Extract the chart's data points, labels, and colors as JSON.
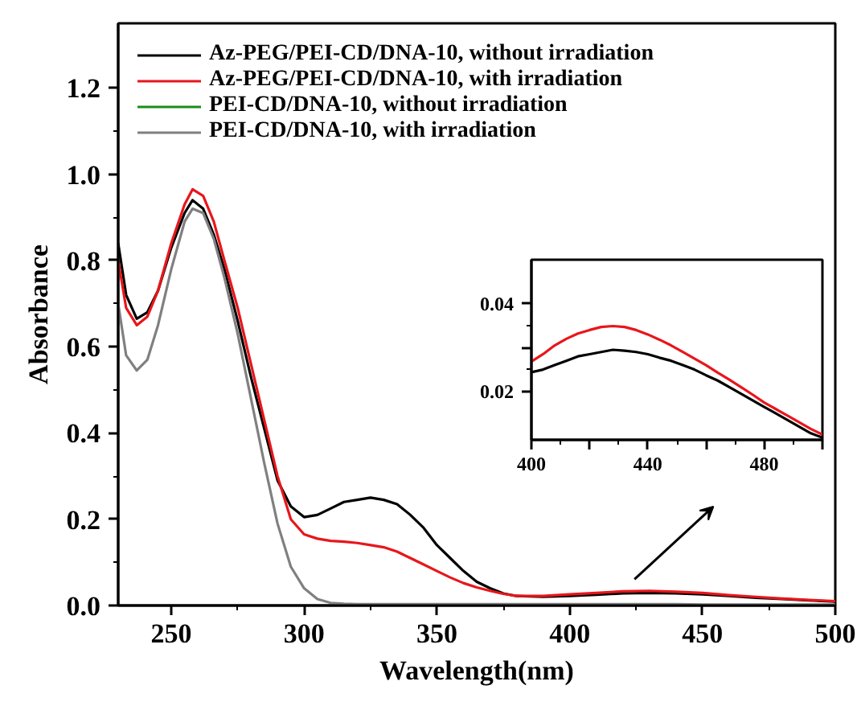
{
  "chart_data": [
    {
      "type": "line",
      "xlabel": "Wavelength(nm)",
      "ylabel": "Absorbance",
      "xlim": [
        230,
        500
      ],
      "ylim": [
        0,
        1.35
      ],
      "xticks": [
        250,
        300,
        350,
        400,
        450,
        500
      ],
      "yticks": [
        {
          "value": 0,
          "label": "0.0"
        },
        0.2,
        0.4,
        0.6,
        0.8,
        {
          "value": 1,
          "label": "1.0"
        },
        1.2
      ],
      "grid": false,
      "legend": "top left",
      "x": [
        230,
        233,
        237,
        241,
        245,
        250,
        255,
        258,
        262,
        266,
        270,
        275,
        280,
        285,
        290,
        295,
        300,
        305,
        310,
        315,
        320,
        325,
        330,
        335,
        340,
        345,
        350,
        355,
        360,
        365,
        370,
        375,
        380,
        390,
        400,
        410,
        420,
        430,
        440,
        450,
        460,
        470,
        480,
        490,
        500
      ],
      "series": [
        {
          "name": "Az-PEG/PEI-CD/DNA-10, without irradiation",
          "color": "#000000",
          "values": [
            0.84,
            0.72,
            0.665,
            0.68,
            0.73,
            0.83,
            0.91,
            0.94,
            0.92,
            0.86,
            0.78,
            0.66,
            0.53,
            0.41,
            0.29,
            0.23,
            0.205,
            0.21,
            0.225,
            0.24,
            0.245,
            0.25,
            0.245,
            0.235,
            0.21,
            0.18,
            0.14,
            0.11,
            0.08,
            0.055,
            0.04,
            0.028,
            0.022,
            0.02,
            0.022,
            0.025,
            0.028,
            0.029,
            0.028,
            0.026,
            0.022,
            0.018,
            0.015,
            0.012,
            0.009
          ]
        },
        {
          "name": "Az-PEG/PEI-CD/DNA-10, with irradiation",
          "color": "#e8161b",
          "values": [
            0.8,
            0.69,
            0.65,
            0.67,
            0.73,
            0.84,
            0.93,
            0.965,
            0.95,
            0.89,
            0.8,
            0.69,
            0.56,
            0.43,
            0.3,
            0.2,
            0.165,
            0.155,
            0.15,
            0.148,
            0.145,
            0.14,
            0.135,
            0.125,
            0.11,
            0.095,
            0.08,
            0.065,
            0.052,
            0.042,
            0.034,
            0.027,
            0.022,
            0.022,
            0.026,
            0.029,
            0.033,
            0.034,
            0.032,
            0.029,
            0.024,
            0.02,
            0.016,
            0.013,
            0.01
          ]
        },
        {
          "name": "PEI-CD/DNA-10, without irradiation",
          "color": "#1a8c1a",
          "values": [
            null,
            null,
            null,
            null,
            null,
            null,
            null,
            null,
            null,
            null,
            null,
            null,
            null,
            null,
            null,
            null,
            null,
            null,
            null,
            null,
            null,
            null,
            null,
            null,
            null,
            null,
            null,
            null,
            null,
            null,
            null,
            null,
            null,
            null,
            null,
            null,
            null,
            null,
            null,
            null,
            null,
            null,
            null,
            null,
            null
          ]
        },
        {
          "name": "PEI-CD/DNA-10, with irradiation",
          "color": "#808080",
          "values": [
            0.7,
            0.58,
            0.545,
            0.57,
            0.65,
            0.78,
            0.89,
            0.92,
            0.91,
            0.85,
            0.76,
            0.63,
            0.48,
            0.33,
            0.19,
            0.09,
            0.04,
            0.015,
            0.006,
            0.004,
            0.003,
            0.003,
            0.003,
            0.003,
            0.003,
            0.003,
            0.003,
            0.003,
            0.003,
            0.003,
            0.003,
            0.003,
            0.003,
            0.003,
            0.003,
            0.003,
            0.003,
            0.003,
            0.003,
            0.002,
            0.002,
            0.002,
            0.002,
            0.002,
            0.002
          ]
        }
      ]
    },
    {
      "type": "line",
      "xlim": [
        400,
        500
      ],
      "ylim": [
        0.009,
        0.05
      ],
      "xticks": [
        400,
        {
          "value": 420,
          "label": null
        },
        440,
        {
          "value": 460,
          "label": null
        },
        480,
        {
          "value": 500,
          "label": null
        }
      ],
      "yticks": [
        0.02,
        {
          "value": 0.03,
          "label": null
        },
        0.04
      ],
      "grid": false,
      "x": [
        400,
        404,
        408,
        412,
        416,
        420,
        424,
        428,
        432,
        436,
        440,
        444,
        448,
        452,
        456,
        460,
        464,
        468,
        472,
        476,
        480,
        484,
        488,
        492,
        496,
        500
      ],
      "series": [
        {
          "color": "#000000",
          "values": [
            0.0244,
            0.025,
            0.026,
            0.027,
            0.028,
            0.0285,
            0.029,
            0.0295,
            0.0293,
            0.029,
            0.0285,
            0.0277,
            0.027,
            0.026,
            0.025,
            0.0237,
            0.0225,
            0.021,
            0.0195,
            0.018,
            0.0165,
            0.015,
            0.0135,
            0.012,
            0.0105,
            0.0095
          ]
        },
        {
          "color": "#e8161b",
          "values": [
            0.0268,
            0.0285,
            0.0305,
            0.032,
            0.0332,
            0.034,
            0.0347,
            0.0349,
            0.0347,
            0.034,
            0.033,
            0.0318,
            0.0305,
            0.029,
            0.0275,
            0.026,
            0.0243,
            0.0227,
            0.021,
            0.0193,
            0.0175,
            0.016,
            0.0145,
            0.013,
            0.0115,
            0.0102
          ]
        }
      ]
    }
  ]
}
